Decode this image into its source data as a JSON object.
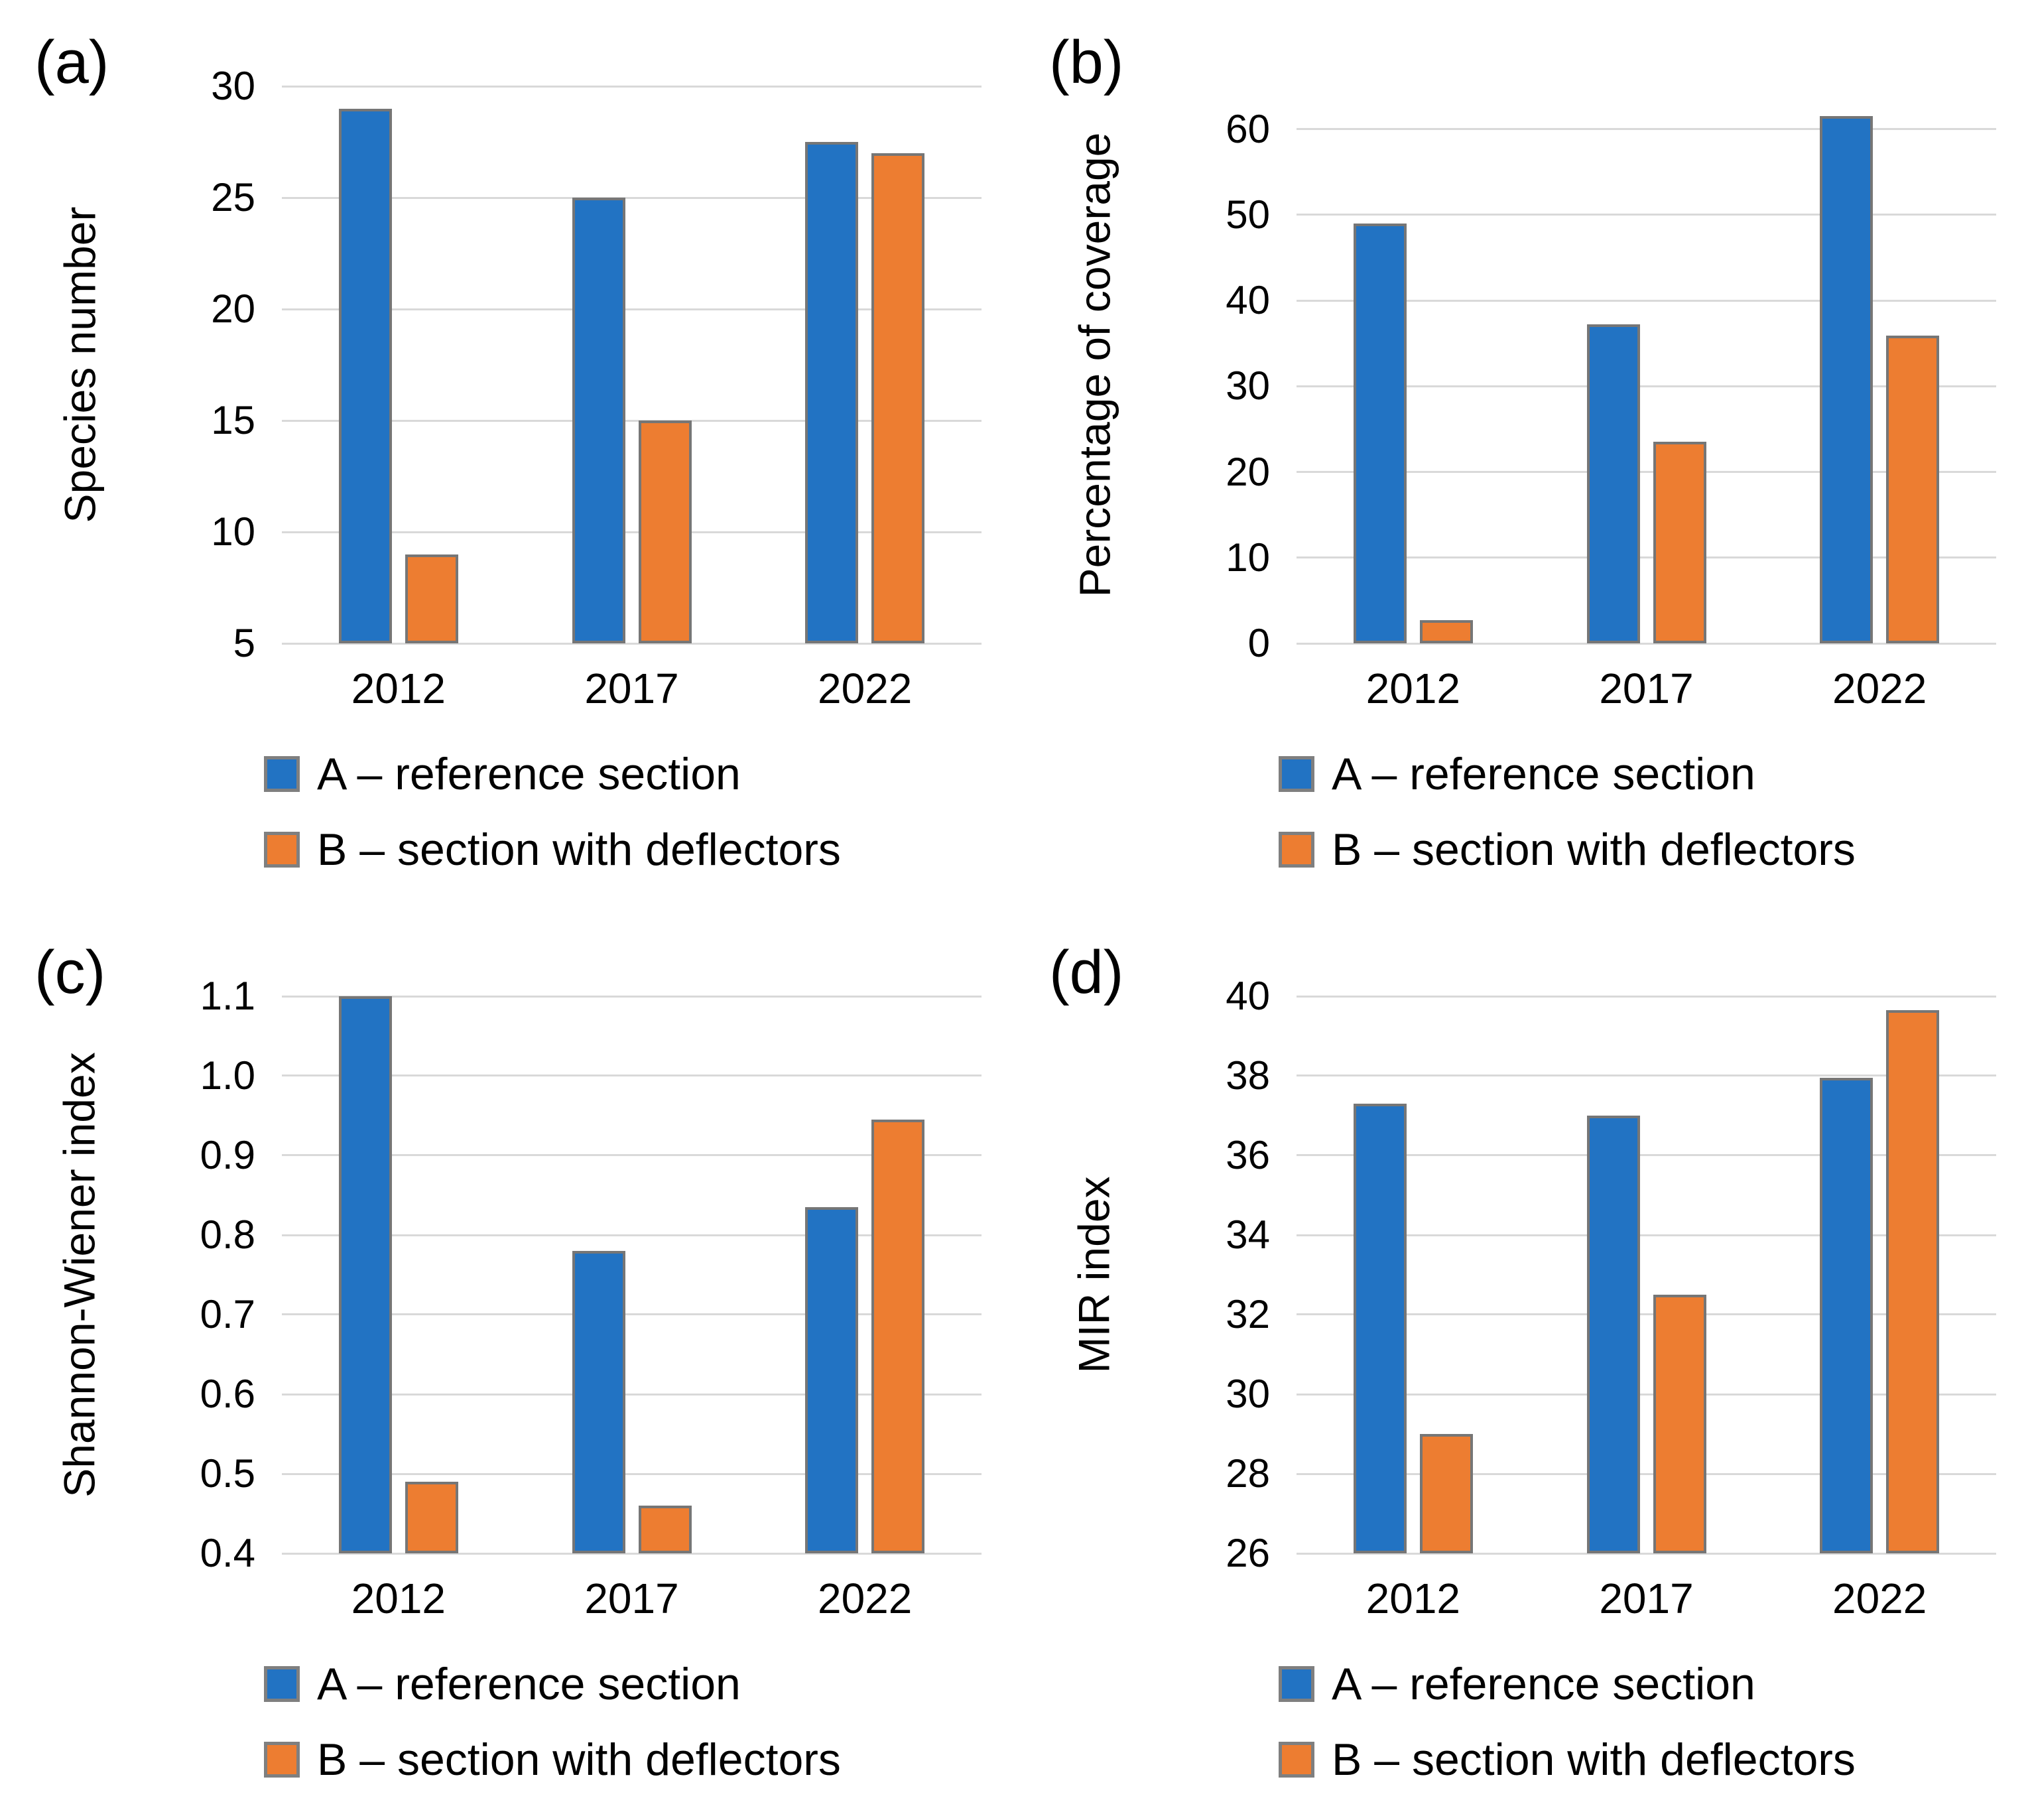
{
  "colors": {
    "series_a": "#2273c3",
    "series_b": "#ed7d31",
    "bar_border": "#767676",
    "gridline": "#d9d9d9",
    "swatch_border": "#7f7f7f"
  },
  "legend": {
    "a_label": "A – reference section",
    "b_label": "B – section with deflectors"
  },
  "chart_data": [
    {
      "type": "bar",
      "panel_label": "(a)",
      "ylabel": "Species number",
      "categories": [
        "2012",
        "2017",
        "2022"
      ],
      "series": [
        {
          "name": "A – reference section",
          "values": [
            29,
            25,
            27.5
          ]
        },
        {
          "name": "B – section with deflectors",
          "values": [
            9,
            15,
            27
          ]
        }
      ],
      "ylim": [
        5,
        30
      ],
      "yticks": [
        5,
        10,
        15,
        20,
        25,
        30
      ],
      "ytick_decimals": 0,
      "grid": true,
      "legend_position": "bottom"
    },
    {
      "type": "bar",
      "panel_label": "(b)",
      "ylabel": "Percentage of coverage",
      "categories": [
        "2012",
        "2017",
        "2022"
      ],
      "series": [
        {
          "name": "A – reference section",
          "values": [
            49,
            37.2,
            61.5
          ]
        },
        {
          "name": "B – section with deflectors",
          "values": [
            2.7,
            23.5,
            35.9
          ]
        }
      ],
      "ylim": [
        0,
        65
      ],
      "yticks": [
        0,
        10,
        20,
        30,
        40,
        50,
        60
      ],
      "ytick_decimals": 0,
      "grid": true,
      "legend_position": "bottom"
    },
    {
      "type": "bar",
      "panel_label": "(c)",
      "ylabel": "Shannon-Wiener index",
      "categories": [
        "2012",
        "2017",
        "2022"
      ],
      "series": [
        {
          "name": "A – reference section",
          "values": [
            1.1,
            0.78,
            0.835
          ]
        },
        {
          "name": "B – section with deflectors",
          "values": [
            0.49,
            0.46,
            0.945
          ]
        }
      ],
      "ylim": [
        0.4,
        1.1
      ],
      "yticks": [
        0.4,
        0.5,
        0.6,
        0.7,
        0.8,
        0.9,
        1.0,
        1.1
      ],
      "ytick_decimals": 1,
      "grid": true,
      "legend_position": "bottom"
    },
    {
      "type": "bar",
      "panel_label": "(d)",
      "ylabel": "MIR index",
      "categories": [
        "2012",
        "2017",
        "2022"
      ],
      "series": [
        {
          "name": "A – reference section",
          "values": [
            37.3,
            37,
            37.95
          ]
        },
        {
          "name": "B – section with deflectors",
          "values": [
            29,
            32.5,
            39.65
          ]
        }
      ],
      "ylim": [
        26,
        40
      ],
      "yticks": [
        26,
        28,
        30,
        32,
        34,
        36,
        38,
        40
      ],
      "ytick_decimals": 0,
      "grid": true,
      "legend_position": "bottom"
    }
  ]
}
